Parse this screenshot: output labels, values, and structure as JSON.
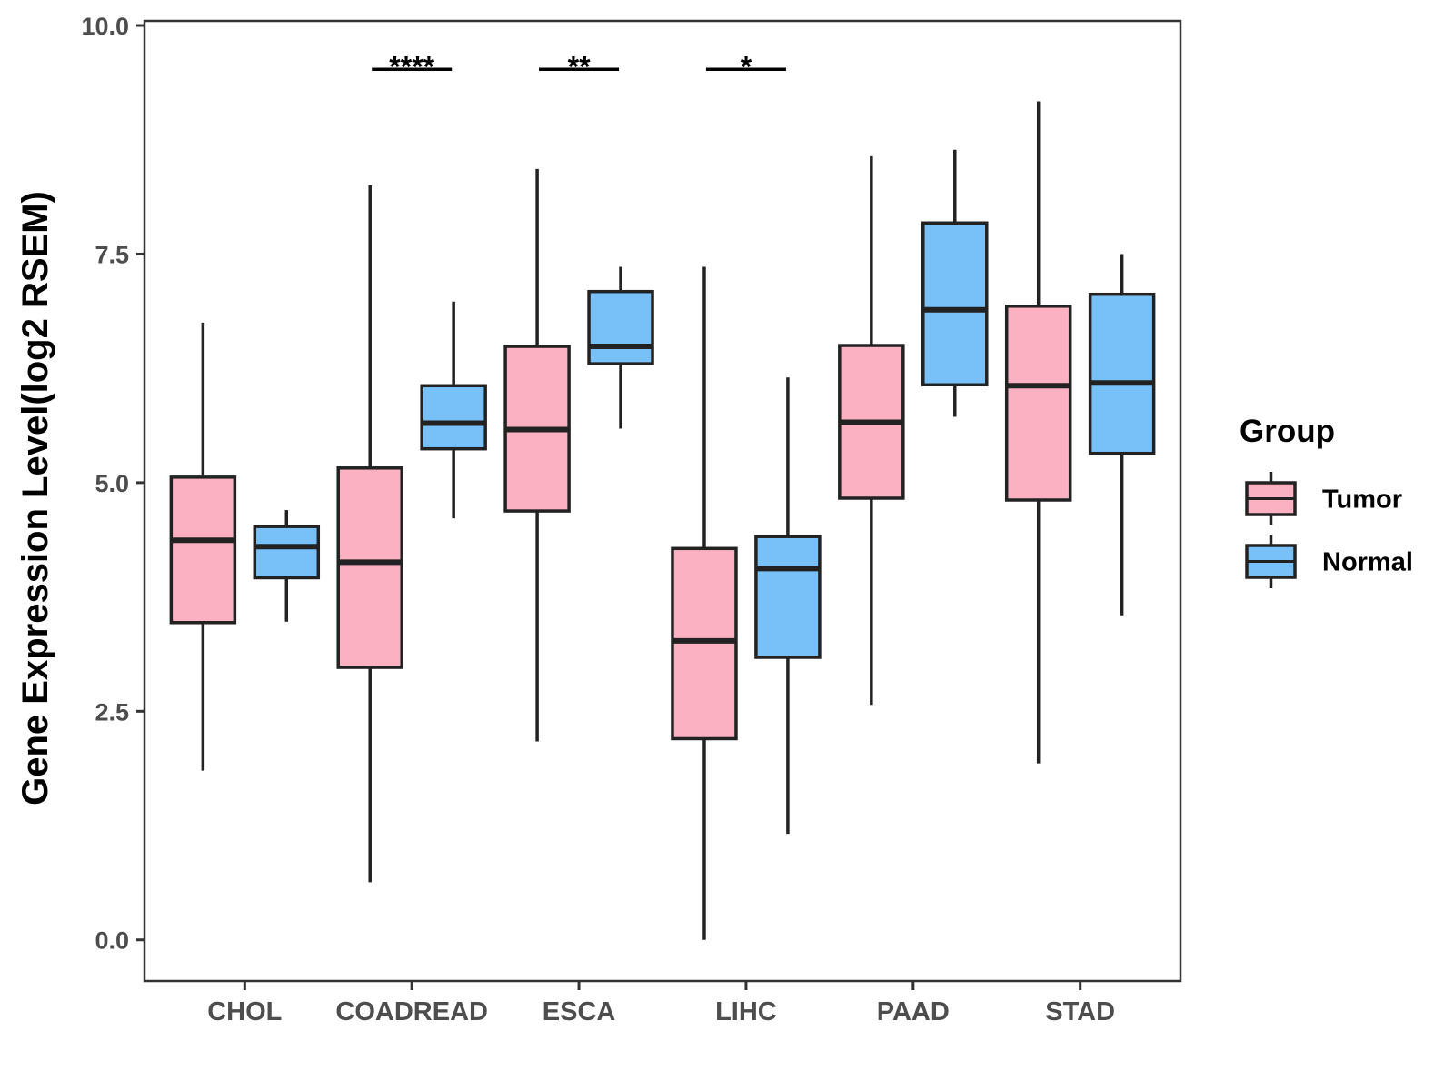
{
  "chart_data": {
    "type": "boxplot",
    "title": "",
    "xlabel": "",
    "ylabel": "Gene Expression Level(log2 RSEM)",
    "ylim": [
      -0.45,
      10.05
    ],
    "yticks": [
      "0.0",
      "2.5",
      "5.0",
      "7.5",
      "10.0"
    ],
    "ytick_values": [
      0,
      2.5,
      5,
      7.5,
      10
    ],
    "categories": [
      "CHOL",
      "COADREAD",
      "ESCA",
      "LIHC",
      "PAAD",
      "STAD"
    ],
    "legend": {
      "title": "Group",
      "position": "right",
      "entries": [
        "Tumor",
        "Normal"
      ]
    },
    "series": [
      {
        "name": "Tumor",
        "color": "#FBB1C1",
        "boxes": [
          {
            "min": 1.85,
            "q1": 3.47,
            "median": 4.37,
            "q3": 5.06,
            "max": 6.75
          },
          {
            "min": 0.63,
            "q1": 2.98,
            "median": 4.13,
            "q3": 5.16,
            "max": 8.25
          },
          {
            "min": 2.17,
            "q1": 4.69,
            "median": 5.58,
            "q3": 6.49,
            "max": 8.43
          },
          {
            "min": 0.0,
            "q1": 2.2,
            "median": 3.27,
            "q3": 4.28,
            "max": 7.36
          },
          {
            "min": 2.57,
            "q1": 4.83,
            "median": 5.66,
            "q3": 6.5,
            "max": 8.57
          },
          {
            "min": 1.93,
            "q1": 4.81,
            "median": 6.06,
            "q3": 6.93,
            "max": 9.17
          }
        ]
      },
      {
        "name": "Normal",
        "color": "#77C1F8",
        "boxes": [
          {
            "min": 3.48,
            "q1": 3.96,
            "median": 4.3,
            "q3": 4.52,
            "max": 4.7
          },
          {
            "min": 4.61,
            "q1": 5.37,
            "median": 5.65,
            "q3": 6.06,
            "max": 6.98
          },
          {
            "min": 5.59,
            "q1": 6.3,
            "median": 6.49,
            "q3": 7.09,
            "max": 7.36
          },
          {
            "min": 1.16,
            "q1": 3.09,
            "median": 4.06,
            "q3": 4.41,
            "max": 6.15
          },
          {
            "min": 5.72,
            "q1": 6.07,
            "median": 6.89,
            "q3": 7.84,
            "max": 8.64
          },
          {
            "min": 3.55,
            "q1": 5.32,
            "median": 6.09,
            "q3": 7.06,
            "max": 7.5
          }
        ]
      }
    ],
    "significance": [
      {
        "category": "COADREAD",
        "label": "****",
        "y": 9.52
      },
      {
        "category": "ESCA",
        "label": "**",
        "y": 9.52
      },
      {
        "category": "LIHC",
        "label": "*",
        "y": 9.52
      }
    ]
  }
}
